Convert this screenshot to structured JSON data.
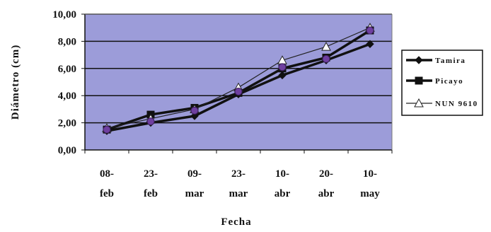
{
  "chart_data": {
    "type": "line",
    "categories": [
      [
        "08-",
        "feb"
      ],
      [
        "23-",
        "feb"
      ],
      [
        "09-",
        "mar"
      ],
      [
        "23-",
        "mar"
      ],
      [
        "10-",
        "abr"
      ],
      [
        "20-",
        "abr"
      ],
      [
        "10-",
        "may"
      ]
    ],
    "series": [
      {
        "name": "Tamira",
        "values": [
          1.4,
          2.0,
          2.5,
          4.1,
          5.5,
          6.6,
          7.8
        ],
        "color": "#111111",
        "marker": "diamond"
      },
      {
        "name": "Picayo",
        "values": [
          1.5,
          2.6,
          3.1,
          4.2,
          6.0,
          6.8,
          8.8
        ],
        "color": "#111111",
        "marker": "square"
      },
      {
        "name": "NUN 9610",
        "values": [
          1.6,
          2.3,
          3.0,
          4.6,
          6.6,
          7.6,
          9.0
        ],
        "color": "#222222",
        "marker": "triangle"
      }
    ],
    "purple_overlay_values": [
      1.5,
      2.1,
      2.9,
      4.3,
      6.1,
      6.7,
      8.8
    ],
    "yticks": [
      "0,00",
      "2,00",
      "4,00",
      "6,00",
      "8,00",
      "10,00"
    ],
    "ylim": [
      0,
      10
    ],
    "xlabel": "Fecha",
    "ylabel": "Diámetro (cm)",
    "grid": true,
    "legend": "right",
    "plot_background": "#9c9cd9",
    "gridline_color": "#111111",
    "overlay_color": "#6f3fa0"
  }
}
